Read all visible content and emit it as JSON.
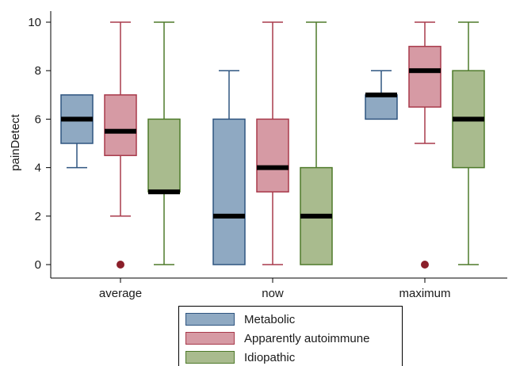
{
  "chart_data": {
    "type": "box",
    "title": "",
    "xlabel": "",
    "ylabel": "painDetect",
    "ylim": [
      0,
      10
    ],
    "yticks": [
      0,
      2,
      4,
      6,
      8,
      10
    ],
    "categories": [
      "average",
      "now",
      "maximum"
    ],
    "legend_position": "bottom",
    "series": [
      {
        "name": "Metabolic",
        "fill": "#8fa9c2",
        "stroke": "#2f5580",
        "boxes": [
          {
            "min": 4,
            "q1": 5,
            "median": 6,
            "q3": 7,
            "max": 7,
            "outliers": []
          },
          {
            "min": 0,
            "q1": 0,
            "median": 2,
            "q3": 6,
            "max": 8,
            "outliers": []
          },
          {
            "min": 6,
            "q1": 6,
            "median": 7,
            "q3": 7,
            "max": 8,
            "outliers": []
          }
        ]
      },
      {
        "name": "Apparently autoimmune",
        "fill": "#d69aa4",
        "stroke": "#a83a4b",
        "boxes": [
          {
            "min": 2,
            "q1": 4.5,
            "median": 5.5,
            "q3": 7,
            "max": 10,
            "outliers": [
              0
            ]
          },
          {
            "min": 0,
            "q1": 3,
            "median": 4,
            "q3": 6,
            "max": 10,
            "outliers": []
          },
          {
            "min": 5,
            "q1": 6.5,
            "median": 8,
            "q3": 9,
            "max": 10,
            "outliers": [
              0
            ]
          }
        ]
      },
      {
        "name": "Idiopathic",
        "fill": "#a9bb8e",
        "stroke": "#4e7a2a",
        "boxes": [
          {
            "min": 0,
            "q1": 3,
            "median": 3,
            "q3": 6,
            "max": 10,
            "outliers": []
          },
          {
            "min": 0,
            "q1": 0,
            "median": 2,
            "q3": 4,
            "max": 10,
            "outliers": []
          },
          {
            "min": 0,
            "q1": 4,
            "median": 6,
            "q3": 8,
            "max": 10,
            "outliers": []
          }
        ]
      }
    ],
    "outlier_color": "#8b1f2a",
    "median_color": "#000000"
  }
}
